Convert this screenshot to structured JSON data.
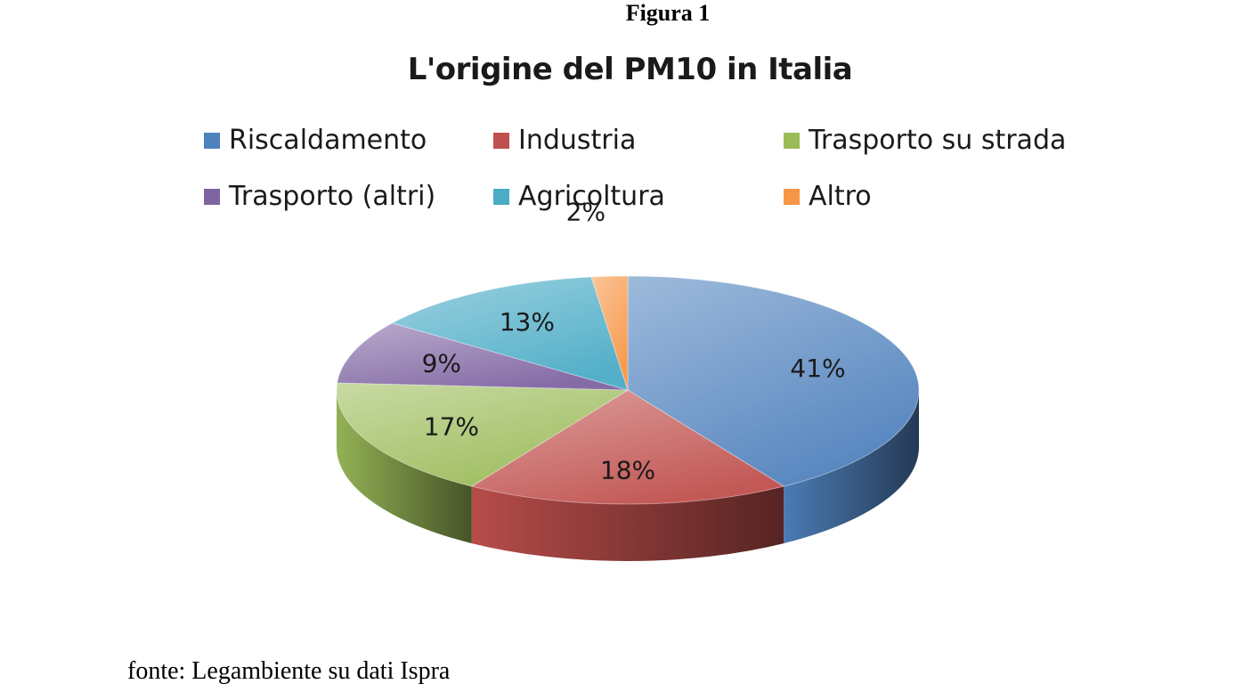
{
  "figure_caption": "Figura 1",
  "source_note": "fonte: Legambiente su dati Ispra",
  "chart_data": {
    "type": "pie",
    "title": "L'origine del PM10 in Italia",
    "categories": [
      "Riscaldamento",
      "Industria",
      "Trasporto su strada",
      "Trasporto (altri)",
      "Agricoltura",
      "Altro"
    ],
    "values": [
      41,
      18,
      17,
      9,
      13,
      2
    ],
    "labels": [
      "41%",
      "18%",
      "17%",
      "9%",
      "13%",
      "2%"
    ],
    "colors": [
      "#4f81bd",
      "#c0504d",
      "#9bbb59",
      "#8064a2",
      "#4bacc6",
      "#f79646"
    ],
    "legend_position": "top",
    "style": "3d"
  }
}
